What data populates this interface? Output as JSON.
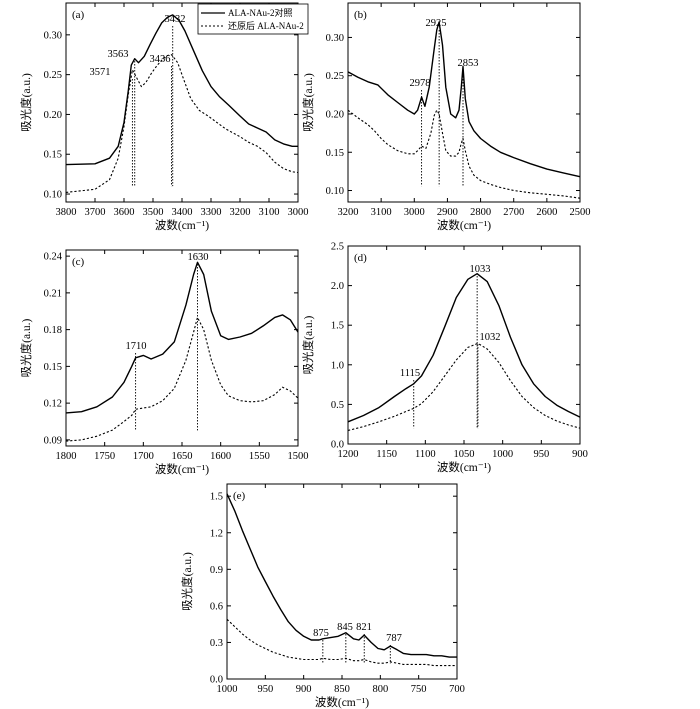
{
  "legend": {
    "solid_label": "ALA-NAu-2对照",
    "dashed_label": "还原后 ALA-NAu-2"
  },
  "chart_data": [
    {
      "type": "line",
      "panel": "(a)",
      "xlabel": "波数(cm⁻¹)",
      "ylabel": "吸光度(a.u.)",
      "xlim": [
        3800,
        3000
      ],
      "ylim": [
        0.09,
        0.34
      ],
      "xticks": [
        3800,
        3700,
        3600,
        3500,
        3400,
        3300,
        3200,
        3100,
        3000
      ],
      "yticks": [
        0.1,
        0.15,
        0.2,
        0.25,
        0.3
      ],
      "ytick_labels": [
        "0.10",
        "0.15",
        "0.20",
        "0.25",
        "0.30"
      ],
      "legend_position": "top-right",
      "series": [
        {
          "name": "ALA-NAu-2对照",
          "style": "solid",
          "x": [
            3800,
            3700,
            3650,
            3620,
            3600,
            3585,
            3575,
            3563,
            3550,
            3530,
            3510,
            3490,
            3470,
            3450,
            3432,
            3410,
            3390,
            3360,
            3330,
            3300,
            3270,
            3240,
            3200,
            3170,
            3140,
            3110,
            3080,
            3050,
            3020,
            3000
          ],
          "y": [
            0.137,
            0.138,
            0.145,
            0.16,
            0.19,
            0.23,
            0.262,
            0.27,
            0.265,
            0.273,
            0.288,
            0.302,
            0.315,
            0.322,
            0.325,
            0.318,
            0.305,
            0.28,
            0.255,
            0.235,
            0.222,
            0.212,
            0.198,
            0.188,
            0.183,
            0.178,
            0.168,
            0.163,
            0.16,
            0.16
          ]
        },
        {
          "name": "还原后 ALA-NAu-2",
          "style": "dashed",
          "x": [
            3800,
            3700,
            3650,
            3620,
            3600,
            3585,
            3571,
            3555,
            3540,
            3525,
            3505,
            3485,
            3465,
            3450,
            3436,
            3415,
            3395,
            3370,
            3340,
            3310,
            3280,
            3250,
            3200,
            3170,
            3140,
            3110,
            3080,
            3050,
            3020,
            3000
          ],
          "y": [
            0.102,
            0.106,
            0.118,
            0.145,
            0.185,
            0.225,
            0.256,
            0.245,
            0.235,
            0.24,
            0.252,
            0.262,
            0.27,
            0.274,
            0.275,
            0.265,
            0.245,
            0.22,
            0.205,
            0.198,
            0.19,
            0.182,
            0.172,
            0.165,
            0.16,
            0.152,
            0.14,
            0.132,
            0.128,
            0.127
          ]
        }
      ],
      "peak_markers": [
        3571,
        3563,
        3436,
        3432
      ],
      "annotations": [
        "3571",
        "3563",
        "3436",
        "3432"
      ]
    },
    {
      "type": "line",
      "panel": "(b)",
      "xlabel": "波数(cm⁻¹)",
      "ylabel": "吸光度(a.u.)",
      "xlim": [
        3200,
        2500
      ],
      "ylim": [
        0.085,
        0.345
      ],
      "xticks": [
        3200,
        3100,
        3000,
        2900,
        2800,
        2700,
        2600,
        2500
      ],
      "yticks": [
        0.1,
        0.15,
        0.2,
        0.25,
        0.3
      ],
      "ytick_labels": [
        "0.10",
        "0.15",
        "0.20",
        "0.25",
        "0.30"
      ],
      "series": [
        {
          "name": "ALA-NAu-2对照",
          "style": "solid",
          "x": [
            3200,
            3170,
            3140,
            3110,
            3080,
            3050,
            3020,
            3000,
            2990,
            2978,
            2968,
            2955,
            2940,
            2932,
            2925,
            2915,
            2905,
            2890,
            2875,
            2865,
            2858,
            2853,
            2846,
            2835,
            2820,
            2800,
            2770,
            2740,
            2700,
            2650,
            2600,
            2550,
            2500
          ],
          "y": [
            0.255,
            0.248,
            0.242,
            0.238,
            0.225,
            0.215,
            0.205,
            0.2,
            0.205,
            0.222,
            0.21,
            0.235,
            0.285,
            0.31,
            0.32,
            0.29,
            0.235,
            0.2,
            0.195,
            0.205,
            0.235,
            0.262,
            0.22,
            0.19,
            0.178,
            0.168,
            0.158,
            0.15,
            0.143,
            0.135,
            0.128,
            0.123,
            0.118
          ]
        },
        {
          "name": "还原后 ALA-NAu-2",
          "style": "dashed",
          "x": [
            3200,
            3170,
            3140,
            3120,
            3100,
            3080,
            3050,
            3020,
            3000,
            2990,
            2978,
            2965,
            2950,
            2940,
            2932,
            2925,
            2915,
            2905,
            2890,
            2875,
            2865,
            2858,
            2853,
            2846,
            2835,
            2820,
            2800,
            2770,
            2740,
            2700,
            2650,
            2600,
            2550,
            2500
          ],
          "y": [
            0.205,
            0.195,
            0.186,
            0.178,
            0.168,
            0.16,
            0.152,
            0.148,
            0.148,
            0.152,
            0.158,
            0.155,
            0.175,
            0.198,
            0.205,
            0.2,
            0.175,
            0.152,
            0.145,
            0.145,
            0.15,
            0.162,
            0.168,
            0.152,
            0.132,
            0.12,
            0.113,
            0.108,
            0.104,
            0.1,
            0.097,
            0.095,
            0.093,
            0.09
          ]
        }
      ],
      "peak_markers": [
        2978,
        2925,
        2853
      ],
      "annotations": [
        "2978",
        "2925",
        "2853"
      ]
    },
    {
      "type": "line",
      "panel": "(c)",
      "xlabel": "波数(cm⁻¹)",
      "ylabel": "吸光度(a.u.)",
      "xlim": [
        1800,
        1500
      ],
      "ylim": [
        0.085,
        0.245
      ],
      "xticks": [
        1800,
        1750,
        1700,
        1650,
        1600,
        1550,
        1500
      ],
      "yticks": [
        0.09,
        0.12,
        0.15,
        0.18,
        0.21,
        0.24
      ],
      "ytick_labels": [
        "0.09",
        "0.12",
        "0.15",
        "0.18",
        "0.21",
        "0.24"
      ],
      "series": [
        {
          "name": "ALA-NAu-2对照",
          "style": "solid",
          "x": [
            1800,
            1780,
            1760,
            1740,
            1725,
            1715,
            1710,
            1700,
            1690,
            1675,
            1660,
            1645,
            1635,
            1630,
            1622,
            1612,
            1600,
            1590,
            1575,
            1560,
            1545,
            1530,
            1520,
            1510,
            1500
          ],
          "y": [
            0.112,
            0.113,
            0.117,
            0.125,
            0.137,
            0.15,
            0.157,
            0.159,
            0.156,
            0.16,
            0.17,
            0.2,
            0.225,
            0.235,
            0.225,
            0.195,
            0.175,
            0.172,
            0.174,
            0.177,
            0.183,
            0.19,
            0.192,
            0.188,
            0.178
          ]
        },
        {
          "name": "还原后 ALA-NAu-2",
          "style": "dashed",
          "x": [
            1800,
            1780,
            1760,
            1740,
            1725,
            1715,
            1710,
            1700,
            1690,
            1675,
            1660,
            1645,
            1635,
            1630,
            1622,
            1612,
            1600,
            1590,
            1575,
            1560,
            1545,
            1530,
            1520,
            1510,
            1500
          ],
          "y": [
            0.089,
            0.09,
            0.093,
            0.098,
            0.105,
            0.11,
            0.115,
            0.116,
            0.117,
            0.122,
            0.132,
            0.155,
            0.178,
            0.19,
            0.18,
            0.155,
            0.135,
            0.126,
            0.122,
            0.121,
            0.122,
            0.127,
            0.133,
            0.13,
            0.124
          ]
        }
      ],
      "peak_markers": [
        1710,
        1630
      ],
      "annotations": [
        "1710",
        "1630"
      ]
    },
    {
      "type": "line",
      "panel": "(d)",
      "xlabel": "波数(cm⁻¹)",
      "ylabel": "吸光度(a.u.)",
      "xlim": [
        1200,
        900
      ],
      "ylim": [
        0,
        2.5
      ],
      "xticks": [
        1200,
        1150,
        1100,
        1050,
        1000,
        950,
        900
      ],
      "yticks": [
        0.0,
        0.5,
        1.0,
        1.5,
        2.0,
        2.5
      ],
      "ytick_labels": [
        "0.0",
        "0.5",
        "1.0",
        "1.5",
        "2.0",
        "2.5"
      ],
      "series": [
        {
          "name": "ALA-NAu-2对照",
          "style": "solid",
          "x": [
            1200,
            1180,
            1160,
            1140,
            1125,
            1115,
            1105,
            1090,
            1075,
            1060,
            1045,
            1033,
            1020,
            1005,
            990,
            975,
            960,
            945,
            930,
            915,
            900
          ],
          "y": [
            0.28,
            0.36,
            0.46,
            0.6,
            0.7,
            0.76,
            0.86,
            1.12,
            1.48,
            1.85,
            2.08,
            2.15,
            2.05,
            1.75,
            1.35,
            1.0,
            0.76,
            0.6,
            0.49,
            0.41,
            0.34
          ]
        },
        {
          "name": "还原后 ALA-NAu-2",
          "style": "dashed",
          "x": [
            1200,
            1180,
            1160,
            1140,
            1125,
            1115,
            1105,
            1090,
            1075,
            1060,
            1045,
            1032,
            1020,
            1005,
            990,
            975,
            960,
            945,
            930,
            915,
            900
          ],
          "y": [
            0.17,
            0.22,
            0.28,
            0.35,
            0.41,
            0.45,
            0.51,
            0.66,
            0.86,
            1.06,
            1.22,
            1.27,
            1.2,
            1.03,
            0.8,
            0.6,
            0.46,
            0.36,
            0.29,
            0.24,
            0.2
          ]
        }
      ],
      "peak_markers": [
        1115,
        1033,
        1032
      ],
      "annotations": [
        "1115",
        "1033",
        "1032"
      ]
    },
    {
      "type": "line",
      "panel": "(e)",
      "xlabel": "波数(cm⁻¹)",
      "ylabel": "吸光度(a.u.)",
      "xlim": [
        1000,
        700
      ],
      "ylim": [
        0,
        1.6
      ],
      "xticks": [
        1000,
        950,
        900,
        850,
        800,
        750,
        700
      ],
      "yticks": [
        0.0,
        0.3,
        0.6,
        0.9,
        1.2,
        1.5
      ],
      "ytick_labels": [
        "0.0",
        "0.3",
        "0.6",
        "0.9",
        "1.2",
        "1.5"
      ],
      "series": [
        {
          "name": "ALA-NAu-2对照",
          "style": "solid",
          "x": [
            1000,
            990,
            980,
            970,
            960,
            950,
            940,
            930,
            920,
            910,
            900,
            890,
            880,
            875,
            865,
            855,
            845,
            835,
            828,
            821,
            812,
            803,
            795,
            787,
            778,
            770,
            760,
            750,
            740,
            730,
            720,
            710,
            700
          ],
          "y": [
            1.52,
            1.38,
            1.22,
            1.07,
            0.92,
            0.8,
            0.68,
            0.57,
            0.47,
            0.4,
            0.35,
            0.32,
            0.32,
            0.33,
            0.34,
            0.35,
            0.38,
            0.33,
            0.32,
            0.36,
            0.3,
            0.25,
            0.24,
            0.27,
            0.24,
            0.21,
            0.2,
            0.2,
            0.2,
            0.19,
            0.19,
            0.18,
            0.18
          ]
        },
        {
          "name": "还原后 ALA-NAu-2",
          "style": "dashed",
          "x": [
            1000,
            990,
            980,
            970,
            960,
            950,
            940,
            930,
            920,
            910,
            900,
            890,
            880,
            875,
            865,
            855,
            845,
            835,
            828,
            821,
            812,
            803,
            795,
            787,
            778,
            770,
            760,
            750,
            740,
            730,
            720,
            710,
            700
          ],
          "y": [
            0.49,
            0.43,
            0.37,
            0.32,
            0.28,
            0.25,
            0.22,
            0.2,
            0.18,
            0.17,
            0.16,
            0.16,
            0.16,
            0.17,
            0.16,
            0.16,
            0.17,
            0.15,
            0.15,
            0.16,
            0.14,
            0.13,
            0.13,
            0.14,
            0.13,
            0.12,
            0.12,
            0.12,
            0.12,
            0.11,
            0.11,
            0.11,
            0.11
          ]
        }
      ],
      "peak_markers": [
        875,
        845,
        821,
        787
      ],
      "annotations": [
        "875",
        "845",
        "821",
        "787"
      ]
    }
  ]
}
